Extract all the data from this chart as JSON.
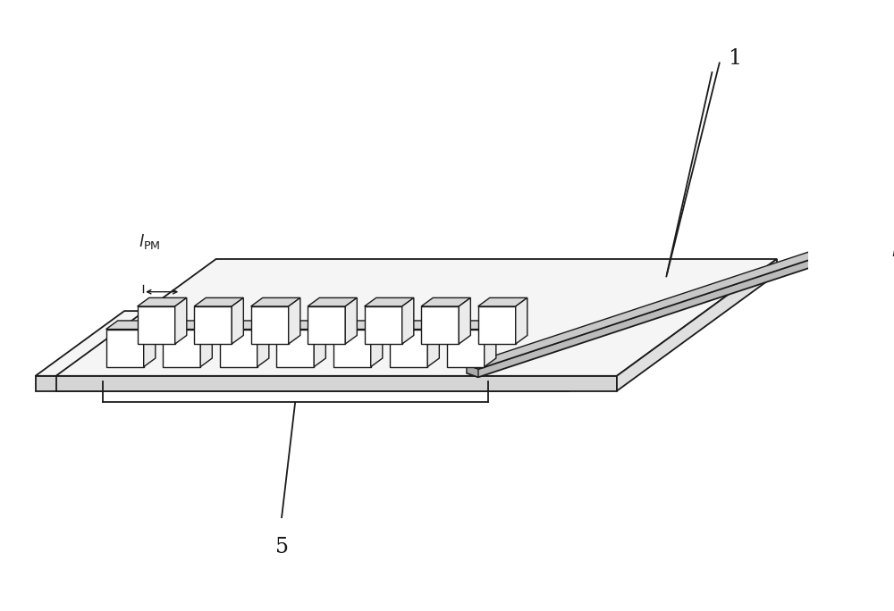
{
  "bg_color": "#ffffff",
  "line_color": "#1a1a1a",
  "face_top": "#f5f5f5",
  "face_front": "#d5d5d5",
  "face_right": "#e0e0e0",
  "strip_color": "#bbbbbb",
  "cube_front": "#ffffff",
  "cube_top": "#d8d8d8",
  "cube_right": "#ebebeb",
  "label_1": "1",
  "label_5": "5",
  "label_lpm": "$l_{\\mathrm{PM}}$",
  "label_lg": "$l_g$",
  "n_cols": 7,
  "n_rows": 2,
  "figsize": [
    10.0,
    6.84
  ],
  "dpi": 100
}
